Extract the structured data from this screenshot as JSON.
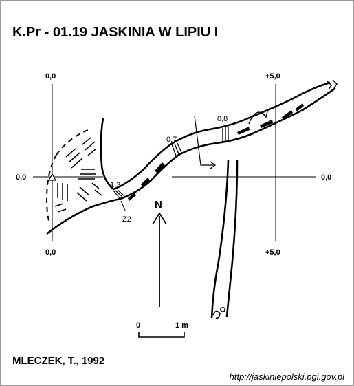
{
  "title": "K.Pr - 01.19 JASKINIA W LIPIU I",
  "author": "MLECZEK, T., 1992",
  "url": "http://jaskiniepolski.pgi.gov.pl",
  "grid_labels": {
    "left_top": "0,0",
    "left_mid": "0,0",
    "left_bottom": "0,0",
    "right_top": "+5,0",
    "right_mid": "0,0",
    "right_bottom": "+5,0"
  },
  "station_labels": {
    "s1": "1,3",
    "s2": "0,7",
    "s3": "0,8"
  },
  "point_label": "Z2",
  "north_label": "N",
  "scale": {
    "zero": "0",
    "one": "1 m"
  }
}
